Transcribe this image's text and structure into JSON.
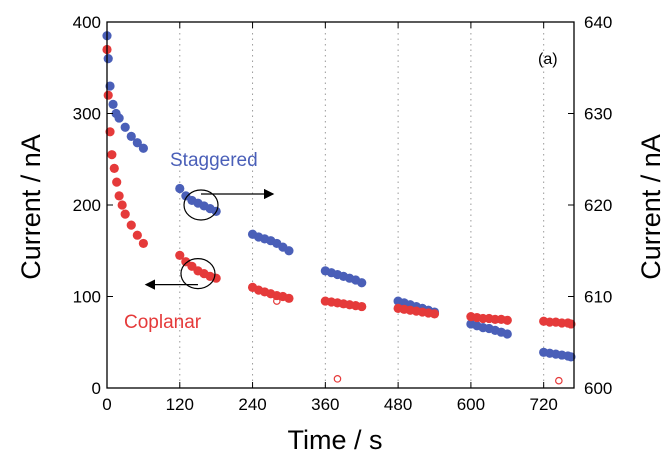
{
  "chart_data": {
    "type": "scatter",
    "panel_label": "(a)",
    "xlabel": "Time / s",
    "ylabel_left": "Current / nA",
    "ylabel_right": "Current / nA",
    "xlim": [
      0,
      770
    ],
    "ylim_left": [
      0,
      400
    ],
    "ylim_right": [
      600,
      640
    ],
    "xticks": [
      0,
      120,
      240,
      360,
      480,
      600,
      720
    ],
    "yticks_left": [
      0,
      100,
      200,
      300,
      400
    ],
    "yticks_right": [
      600,
      610,
      620,
      630,
      640
    ],
    "grid": "vertical dotted at x ticks",
    "colors": {
      "staggered": "#4a5fb8",
      "coplanar": "#e53a3a"
    },
    "series": [
      {
        "name": "Staggered",
        "axis": "right",
        "segments": [
          {
            "x": [
              0,
              2,
              5,
              10,
              15,
              20,
              30,
              40,
              50,
              60
            ],
            "y": [
              638.5,
              636,
              633,
              631,
              630,
              629.5,
              628.5,
              627.5,
              626.8,
              626.2
            ]
          },
          {
            "x": [
              120,
              130,
              140,
              150,
              160,
              170,
              180
            ],
            "y": [
              621.8,
              621,
              620.5,
              620.2,
              619.9,
              619.6,
              619.3
            ]
          },
          {
            "x": [
              240,
              250,
              260,
              270,
              280,
              290,
              300
            ],
            "y": [
              616.8,
              616.5,
              616.3,
              616.1,
              615.8,
              615.4,
              615
            ]
          },
          {
            "x": [
              360,
              370,
              380,
              390,
              400,
              410,
              420
            ],
            "y": [
              612.8,
              612.6,
              612.4,
              612.2,
              612,
              611.8,
              611.5
            ]
          },
          {
            "x": [
              480,
              490,
              500,
              510,
              520,
              530,
              540
            ],
            "y": [
              609.5,
              609.3,
              609.1,
              608.9,
              608.7,
              608.5,
              608.3
            ]
          },
          {
            "x": [
              600,
              610,
              620,
              630,
              640,
              650,
              660
            ],
            "y": [
              607,
              606.8,
              606.6,
              606.5,
              606.3,
              606.1,
              605.9
            ]
          },
          {
            "x": [
              720,
              730,
              740,
              750,
              760,
              765
            ],
            "y": [
              603.9,
              603.8,
              603.7,
              603.6,
              603.5,
              603.4
            ]
          }
        ]
      },
      {
        "name": "Coplanar",
        "axis": "left",
        "segments": [
          {
            "x": [
              0,
              2,
              5,
              8,
              12,
              16,
              20,
              25,
              30,
              40,
              50,
              60
            ],
            "y": [
              370,
              320,
              280,
              255,
              240,
              225,
              210,
              200,
              190,
              178,
              167,
              158
            ]
          },
          {
            "x": [
              120,
              130,
              140,
              150,
              160,
              170,
              180
            ],
            "y": [
              145,
              138,
              133,
              128,
              125,
              122,
              120
            ]
          },
          {
            "x": [
              240,
              250,
              260,
              270,
              280,
              290,
              300
            ],
            "y": [
              110,
              107,
              105,
              103,
              101,
              100,
              98
            ]
          },
          {
            "x": [
              360,
              370,
              380,
              390,
              400,
              410,
              420
            ],
            "y": [
              95,
              94,
              93,
              92,
              91,
              90,
              89
            ]
          },
          {
            "x": [
              480,
              490,
              500,
              510,
              520,
              530,
              540
            ],
            "y": [
              87,
              86,
              85,
              84,
              83,
              82,
              81
            ]
          },
          {
            "x": [
              600,
              610,
              620,
              630,
              640,
              650,
              660
            ],
            "y": [
              78,
              77,
              76,
              76,
              75,
              75,
              74
            ]
          },
          {
            "x": [
              720,
              730,
              740,
              750,
              760,
              765
            ],
            "y": [
              73,
              72,
              72,
              71,
              71,
              70
            ]
          }
        ],
        "outliers": {
          "x": [
            280,
            380,
            745
          ],
          "y": [
            95,
            10,
            8
          ]
        }
      }
    ],
    "annotations": [
      {
        "text": "Staggered",
        "series": "Staggered",
        "arrow": "right"
      },
      {
        "text": "Coplanar",
        "series": "Coplanar",
        "arrow": "left"
      }
    ]
  }
}
